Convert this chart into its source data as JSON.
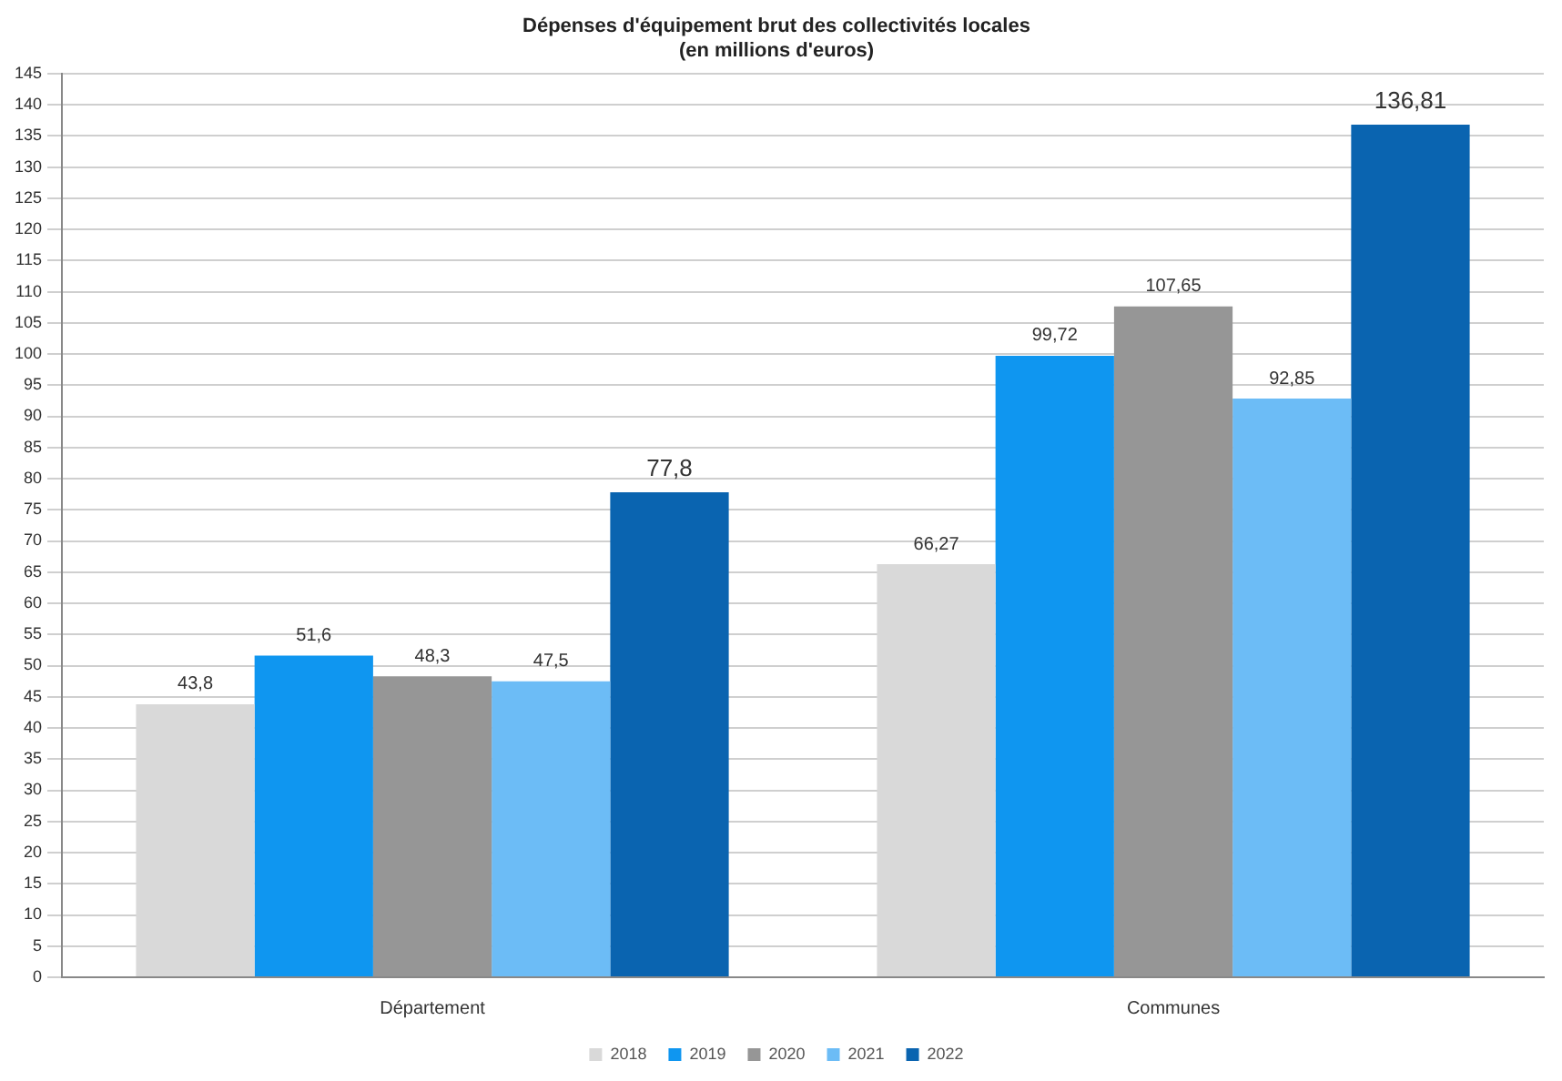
{
  "chart_data": {
    "type": "bar",
    "title": [
      "Dépenses d'équipement brut des collectivités locales",
      "(en millions d'euros)"
    ],
    "categories": [
      "Département",
      "Communes"
    ],
    "series": [
      {
        "name": "2018",
        "color": "#d9d9d9",
        "values": [
          43.8,
          66.27
        ],
        "value_labels": [
          "43,8",
          "66,27"
        ]
      },
      {
        "name": "2019",
        "color": "#0f96f0",
        "values": [
          51.6,
          99.72
        ],
        "value_labels": [
          "51,6",
          "99,72"
        ]
      },
      {
        "name": "2020",
        "color": "#969696",
        "values": [
          48.3,
          107.65
        ],
        "value_labels": [
          "48,3",
          "107,65"
        ]
      },
      {
        "name": "2021",
        "color": "#6cbcf6",
        "values": [
          47.5,
          92.85
        ],
        "value_labels": [
          "47,5",
          "92,85"
        ]
      },
      {
        "name": "2022",
        "color": "#0a64b0",
        "values": [
          77.8,
          136.81
        ],
        "value_labels": [
          "77,8",
          "136,81"
        ]
      }
    ],
    "ylim": [
      0,
      145
    ],
    "yticks": [
      0,
      5,
      10,
      15,
      20,
      25,
      30,
      35,
      40,
      45,
      50,
      55,
      60,
      65,
      70,
      75,
      80,
      85,
      90,
      95,
      100,
      105,
      110,
      115,
      120,
      125,
      130,
      135,
      140,
      145
    ],
    "grid": "y",
    "legend": "bottom"
  }
}
